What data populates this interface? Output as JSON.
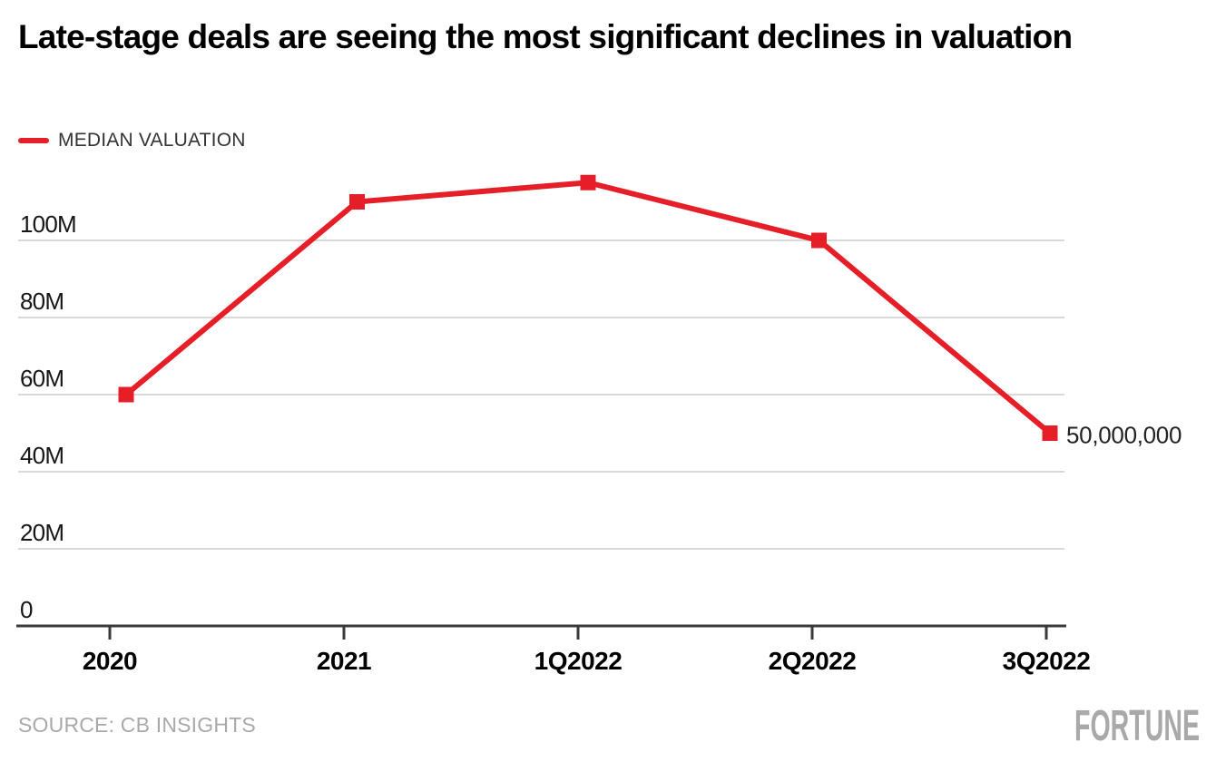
{
  "header": {
    "title": "Late-stage deals are seeing the most significant declines in valuation"
  },
  "legend": {
    "label": "MEDIAN VALUATION"
  },
  "footer": {
    "source": "SOURCE: CB INSIGHTS",
    "brand": "FORTUNE"
  },
  "colors": {
    "line": "#e61e28",
    "grid": "#d9d9d9",
    "axis": "#3a3a3a",
    "y_label": "#161616",
    "x_label": "#000000",
    "annotation": "#222222",
    "muted": "#a9a9a9"
  },
  "chart_data": {
    "type": "line",
    "title": "Late-stage deals are seeing the most significant declines in valuation",
    "categories": [
      "2020",
      "2021",
      "1Q2022",
      "2Q2022",
      "3Q2022"
    ],
    "series": [
      {
        "name": "MEDIAN VALUATION",
        "values": [
          60000000,
          110000000,
          115000000,
          100000000,
          50000000
        ]
      }
    ],
    "xlabel": "",
    "ylabel": "",
    "ylim": [
      0,
      120000000
    ],
    "y_ticks": [
      {
        "value": 100000000,
        "label": "100M"
      },
      {
        "value": 80000000,
        "label": "80M"
      },
      {
        "value": 60000000,
        "label": "60M"
      },
      {
        "value": 40000000,
        "label": "40M"
      },
      {
        "value": 20000000,
        "label": "20M"
      },
      {
        "value": 0,
        "label": "0"
      }
    ],
    "grid": "horizontal",
    "legend_position": "top-left",
    "marker": "square",
    "point_annotation": {
      "index": 4,
      "label": "50,000,000"
    }
  }
}
